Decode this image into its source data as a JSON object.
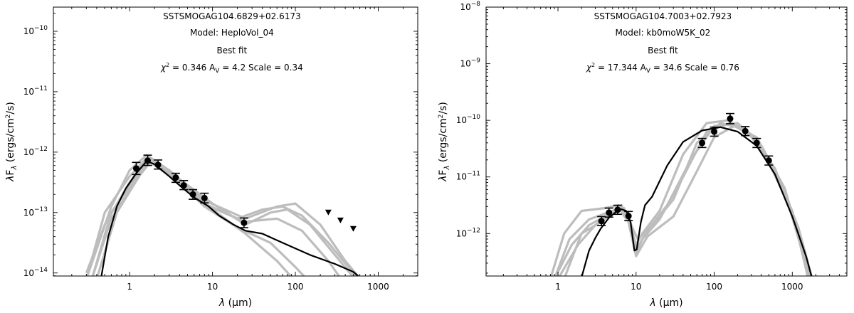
{
  "chart_data": [
    {
      "type": "line",
      "source_name": "SSTSMOGAG104.6829+02.6173",
      "model_line": "Model: HeploVol_04",
      "fit_label": "Best fit",
      "stats": {
        "chi2_label": "χ² =",
        "chi2": "0.346",
        "av_label": "A",
        "av_sub": "V",
        "av": "4.2",
        "scale_label": "Scale =",
        "scale": "0.34"
      },
      "xlabel": "λ (μm)",
      "ylabel": "λF_λ (ergs/cm²/s)",
      "x_scale": "log",
      "y_scale": "log",
      "xlim": [
        0.12,
        3000
      ],
      "ylim_log10": [
        -14.05,
        -9.6
      ],
      "x_ticks": [
        {
          "v": 1,
          "label": "1"
        },
        {
          "v": 10,
          "label": "10"
        },
        {
          "v": 100,
          "label": "100"
        },
        {
          "v": 1000,
          "label": "1000"
        }
      ],
      "y_ticks": [
        {
          "e": -14,
          "label": "10",
          "sup": "−14"
        },
        {
          "e": -13,
          "label": "10",
          "sup": "−13"
        },
        {
          "e": -12,
          "label": "10",
          "sup": "−12"
        },
        {
          "e": -11,
          "label": "10",
          "sup": "−11"
        },
        {
          "e": -10,
          "label": "10",
          "sup": "−10"
        }
      ],
      "best_fit": [
        [
          0.45,
          -14.1
        ],
        [
          0.55,
          -13.4
        ],
        [
          0.7,
          -12.9
        ],
        [
          0.9,
          -12.6
        ],
        [
          1.2,
          -12.35
        ],
        [
          1.6,
          -12.15
        ],
        [
          2.0,
          -12.2
        ],
        [
          3.0,
          -12.4
        ],
        [
          4.0,
          -12.55
        ],
        [
          6.0,
          -12.75
        ],
        [
          9.0,
          -12.9
        ],
        [
          12.0,
          -13.05
        ],
        [
          18.0,
          -13.2
        ],
        [
          25.0,
          -13.3
        ],
        [
          40.0,
          -13.35
        ],
        [
          70.0,
          -13.5
        ],
        [
          150.0,
          -13.7
        ],
        [
          300.0,
          -13.85
        ],
        [
          500.0,
          -13.98
        ],
        [
          700.0,
          -14.15
        ]
      ],
      "models": [
        [
          [
            0.3,
            -14.1
          ],
          [
            0.5,
            -13.0
          ],
          [
            1.0,
            -12.4
          ],
          [
            1.6,
            -12.1
          ],
          [
            3.0,
            -12.3
          ],
          [
            8.0,
            -12.8
          ],
          [
            25.0,
            -13.1
          ],
          [
            60.0,
            -12.9
          ],
          [
            100.0,
            -12.85
          ],
          [
            200.0,
            -13.2
          ],
          [
            400.0,
            -13.8
          ],
          [
            700.0,
            -14.2
          ]
        ],
        [
          [
            0.35,
            -14.1
          ],
          [
            0.6,
            -13.0
          ],
          [
            1.2,
            -12.4
          ],
          [
            1.8,
            -12.1
          ],
          [
            4.0,
            -12.45
          ],
          [
            10.0,
            -12.85
          ],
          [
            25.0,
            -13.2
          ],
          [
            50.0,
            -13.0
          ],
          [
            80.0,
            -12.95
          ],
          [
            150.0,
            -13.2
          ],
          [
            300.0,
            -13.7
          ],
          [
            600.0,
            -14.2
          ]
        ],
        [
          [
            0.3,
            -14.0
          ],
          [
            0.5,
            -13.2
          ],
          [
            1.0,
            -12.5
          ],
          [
            1.6,
            -12.12
          ],
          [
            3.0,
            -12.35
          ],
          [
            8.0,
            -12.9
          ],
          [
            20.0,
            -13.25
          ],
          [
            50.0,
            -13.5
          ],
          [
            100.0,
            -13.9
          ],
          [
            160.0,
            -14.2
          ]
        ],
        [
          [
            0.4,
            -14.1
          ],
          [
            0.7,
            -13.0
          ],
          [
            1.3,
            -12.4
          ],
          [
            1.8,
            -12.15
          ],
          [
            4.0,
            -12.5
          ],
          [
            10.0,
            -12.95
          ],
          [
            25.0,
            -13.35
          ],
          [
            60.0,
            -13.8
          ],
          [
            110.0,
            -14.2
          ]
        ],
        [
          [
            0.3,
            -14.1
          ],
          [
            0.6,
            -12.9
          ],
          [
            1.0,
            -12.3
          ],
          [
            1.6,
            -12.05
          ],
          [
            3.0,
            -12.3
          ],
          [
            8.0,
            -12.85
          ],
          [
            20.0,
            -13.1
          ],
          [
            40.0,
            -12.95
          ],
          [
            70.0,
            -12.9
          ],
          [
            120.0,
            -13.05
          ],
          [
            250.0,
            -13.5
          ],
          [
            500.0,
            -14.0
          ],
          [
            700.0,
            -14.2
          ]
        ],
        [
          [
            0.35,
            -14.1
          ],
          [
            0.6,
            -13.1
          ],
          [
            1.2,
            -12.45
          ],
          [
            1.7,
            -12.15
          ],
          [
            3.5,
            -12.45
          ],
          [
            9.0,
            -12.9
          ],
          [
            25.0,
            -13.15
          ],
          [
            60.0,
            -13.1
          ],
          [
            120.0,
            -13.3
          ],
          [
            250.0,
            -13.8
          ],
          [
            400.0,
            -14.2
          ]
        ]
      ],
      "points": [
        {
          "x": 1.2,
          "y": -12.27,
          "lo": -12.37,
          "hi": -12.17
        },
        {
          "x": 1.65,
          "y": -12.14,
          "lo": -12.22,
          "hi": -12.05
        },
        {
          "x": 2.2,
          "y": -12.21,
          "lo": -12.28,
          "hi": -12.13
        },
        {
          "x": 3.6,
          "y": -12.42,
          "lo": -12.5,
          "hi": -12.35
        },
        {
          "x": 4.5,
          "y": -12.55,
          "lo": -12.62,
          "hi": -12.47
        },
        {
          "x": 5.8,
          "y": -12.7,
          "lo": -12.78,
          "hi": -12.62
        },
        {
          "x": 8.0,
          "y": -12.76,
          "lo": -12.84,
          "hi": -12.68
        },
        {
          "x": 24.0,
          "y": -13.17,
          "lo": -13.25,
          "hi": -13.09
        }
      ],
      "upper_limits": [
        {
          "x": 250,
          "y": -13.0
        },
        {
          "x": 350,
          "y": -13.13
        },
        {
          "x": 500,
          "y": -13.27
        }
      ]
    },
    {
      "type": "line",
      "source_name": "SSTSMOGAG104.7003+02.7923",
      "model_line": "Model: kb0moW5K_02",
      "fit_label": "Best fit",
      "stats": {
        "chi2_label": "χ² =",
        "chi2": "17.344",
        "av_label": "A",
        "av_sub": "V",
        "av": "34.6",
        "scale_label": "Scale =",
        "scale": "0.76"
      },
      "xlabel": "λ (μm)",
      "ylabel": "λF_λ (ergs/cm²/s)",
      "x_scale": "log",
      "y_scale": "log",
      "xlim": [
        0.12,
        5000
      ],
      "ylim_log10": [
        -12.75,
        -8.0
      ],
      "x_ticks": [
        {
          "v": 1,
          "label": "1"
        },
        {
          "v": 10,
          "label": "10"
        },
        {
          "v": 100,
          "label": "100"
        },
        {
          "v": 1000,
          "label": "1000"
        }
      ],
      "y_ticks": [
        {
          "e": -12,
          "label": "10",
          "sup": "−12"
        },
        {
          "e": -11,
          "label": "10",
          "sup": "−11"
        },
        {
          "e": -10,
          "label": "10",
          "sup": "−10"
        },
        {
          "e": -9,
          "label": "10",
          "sup": "−9"
        },
        {
          "e": -8,
          "label": "10",
          "sup": "−8"
        }
      ],
      "best_fit": [
        [
          1.98,
          -12.8
        ],
        [
          2.5,
          -12.3
        ],
        [
          3.0,
          -12.08
        ],
        [
          3.5,
          -11.92
        ],
        [
          4.5,
          -11.72
        ],
        [
          5.5,
          -11.62
        ],
        [
          6.5,
          -11.57
        ],
        [
          7.5,
          -11.6
        ],
        [
          8.5,
          -11.8
        ],
        [
          9.5,
          -12.3
        ],
        [
          10.2,
          -12.28
        ],
        [
          11.5,
          -11.8
        ],
        [
          13.0,
          -11.5
        ],
        [
          16.0,
          -11.35
        ],
        [
          25.0,
          -10.8
        ],
        [
          40.0,
          -10.38
        ],
        [
          70.0,
          -10.18
        ],
        [
          120.0,
          -10.12
        ],
        [
          200.0,
          -10.2
        ],
        [
          350.0,
          -10.45
        ],
        [
          600.0,
          -10.95
        ],
        [
          1000.0,
          -11.7
        ],
        [
          1500.0,
          -12.4
        ],
        [
          1800.0,
          -12.8
        ]
      ],
      "models": [
        [
          [
            0.8,
            -12.8
          ],
          [
            1.2,
            -12.0
          ],
          [
            2.0,
            -11.6
          ],
          [
            4.0,
            -11.55
          ],
          [
            6.0,
            -11.5
          ],
          [
            8.0,
            -11.8
          ],
          [
            10.0,
            -12.2
          ],
          [
            12.0,
            -12.0
          ],
          [
            20.0,
            -11.6
          ],
          [
            40.0,
            -10.6
          ],
          [
            80.0,
            -10.05
          ],
          [
            150.0,
            -10.0
          ],
          [
            300.0,
            -10.25
          ],
          [
            600.0,
            -10.85
          ],
          [
            1200.0,
            -11.9
          ],
          [
            1800.0,
            -12.8
          ]
        ],
        [
          [
            0.9,
            -12.8
          ],
          [
            1.4,
            -12.1
          ],
          [
            2.5,
            -11.75
          ],
          [
            5.0,
            -11.6
          ],
          [
            7.0,
            -11.55
          ],
          [
            9.0,
            -11.9
          ],
          [
            10.5,
            -12.1
          ],
          [
            15.0,
            -11.9
          ],
          [
            30.0,
            -11.4
          ],
          [
            60.0,
            -10.4
          ],
          [
            120.0,
            -10.05
          ],
          [
            250.0,
            -10.15
          ],
          [
            500.0,
            -10.7
          ],
          [
            1000.0,
            -11.6
          ],
          [
            1600.0,
            -12.8
          ]
        ],
        [
          [
            1.0,
            -12.8
          ],
          [
            1.8,
            -12.2
          ],
          [
            3.0,
            -11.85
          ],
          [
            5.0,
            -11.65
          ],
          [
            7.0,
            -11.55
          ],
          [
            9.0,
            -11.95
          ],
          [
            10.0,
            -12.35
          ],
          [
            13.0,
            -12.0
          ],
          [
            25.0,
            -11.5
          ],
          [
            50.0,
            -10.7
          ],
          [
            100.0,
            -10.1
          ],
          [
            200.0,
            -10.05
          ],
          [
            400.0,
            -10.45
          ],
          [
            900.0,
            -11.5
          ],
          [
            1700.0,
            -12.8
          ]
        ],
        [
          [
            1.2,
            -12.8
          ],
          [
            2.0,
            -12.0
          ],
          [
            3.5,
            -11.8
          ],
          [
            6.0,
            -11.55
          ],
          [
            8.0,
            -11.8
          ],
          [
            10.0,
            -12.4
          ],
          [
            14.0,
            -12.05
          ],
          [
            30.0,
            -11.7
          ],
          [
            60.0,
            -10.9
          ],
          [
            100.0,
            -10.3
          ],
          [
            180.0,
            -10.1
          ],
          [
            350.0,
            -10.3
          ],
          [
            800.0,
            -11.2
          ],
          [
            1500.0,
            -12.5
          ],
          [
            1700.0,
            -12.8
          ]
        ],
        [
          [
            0.9,
            -12.8
          ],
          [
            1.5,
            -12.2
          ],
          [
            2.5,
            -11.85
          ],
          [
            4.0,
            -11.7
          ],
          [
            6.5,
            -11.5
          ],
          [
            8.5,
            -11.85
          ],
          [
            10.0,
            -12.3
          ],
          [
            12.0,
            -12.1
          ],
          [
            20.0,
            -11.75
          ],
          [
            40.0,
            -11.0
          ],
          [
            80.0,
            -10.2
          ],
          [
            160.0,
            -10.05
          ],
          [
            320.0,
            -10.3
          ],
          [
            700.0,
            -11.05
          ],
          [
            1400.0,
            -12.3
          ],
          [
            1750.0,
            -12.8
          ]
        ]
      ],
      "points": [
        {
          "x": 3.6,
          "y": -11.78,
          "lo": -11.86,
          "hi": -11.7
        },
        {
          "x": 4.5,
          "y": -11.63,
          "lo": -11.71,
          "hi": -11.55
        },
        {
          "x": 5.8,
          "y": -11.58,
          "lo": -11.66,
          "hi": -11.5
        },
        {
          "x": 8.0,
          "y": -11.69,
          "lo": -11.77,
          "hi": -11.61
        },
        {
          "x": 70.0,
          "y": -10.4,
          "lo": -10.48,
          "hi": -10.32
        },
        {
          "x": 100.0,
          "y": -10.2,
          "lo": -10.28,
          "hi": -10.12
        },
        {
          "x": 160.0,
          "y": -9.97,
          "lo": -10.06,
          "hi": -9.88
        },
        {
          "x": 250.0,
          "y": -10.19,
          "lo": -10.27,
          "hi": -10.11
        },
        {
          "x": 350.0,
          "y": -10.4,
          "lo": -10.48,
          "hi": -10.32
        },
        {
          "x": 500.0,
          "y": -10.71,
          "lo": -10.79,
          "hi": -10.63
        }
      ],
      "upper_limits": []
    }
  ]
}
